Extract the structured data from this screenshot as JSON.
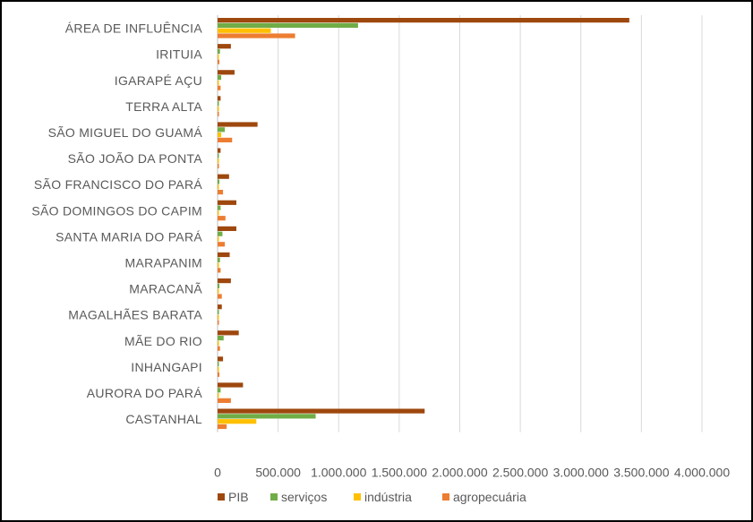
{
  "chart_data": {
    "type": "bar",
    "orientation": "horizontal",
    "categories": [
      "ÁREA DE INFLUÊNCIA",
      "IRITUIA",
      "IGARAPÉ AÇU",
      "TERRA ALTA",
      "SÃO MIGUEL DO GUAMÁ",
      "SÃO JOÃO DA PONTA",
      "SÃO FRANCISCO DO PARÁ",
      "SÃO DOMINGOS DO CAPIM",
      "SANTA MARIA DO PARÁ",
      "MARAPANIM",
      "MARACANÃ",
      "MAGALHÃES BARATA",
      "MÃE DO RIO",
      "INHANGAPI",
      "AURORA DO PARÁ",
      "CASTANHAL"
    ],
    "series": [
      {
        "name": "PIB",
        "color": "#9E480E",
        "values": [
          3400000,
          110000,
          140000,
          25000,
          330000,
          25000,
          95000,
          155000,
          155000,
          100000,
          110000,
          35000,
          175000,
          45000,
          210000,
          1710000
        ]
      },
      {
        "name": "serviços",
        "color": "#70AD47",
        "values": [
          1160000,
          20000,
          30000,
          5000,
          60000,
          5000,
          15000,
          25000,
          40000,
          20000,
          15000,
          8000,
          50000,
          8000,
          25000,
          810000
        ]
      },
      {
        "name": "indústria",
        "color": "#FFC000",
        "values": [
          440000,
          5000,
          5000,
          2000,
          30000,
          2000,
          5000,
          5000,
          5000,
          5000,
          5000,
          2000,
          10000,
          2000,
          5000,
          320000
        ]
      },
      {
        "name": "agropecuária",
        "color": "#ED7D31",
        "values": [
          640000,
          15000,
          25000,
          10000,
          120000,
          10000,
          45000,
          65000,
          60000,
          25000,
          35000,
          10000,
          20000,
          15000,
          110000,
          75000
        ]
      }
    ],
    "xlim": [
      0,
      4000000
    ],
    "x_ticks": [
      "0",
      "500.000",
      "1.000.000",
      "1.500.000",
      "2.000.000",
      "2.500.000",
      "3.000.000",
      "3.500.000",
      "4.000.000"
    ],
    "grid": true,
    "legend_position": "bottom"
  }
}
